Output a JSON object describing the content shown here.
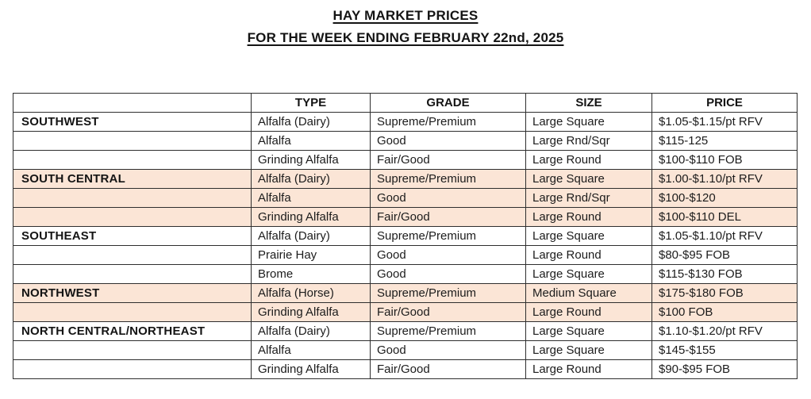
{
  "title": {
    "line1": "HAY MARKET PRICES",
    "line2": "FOR THE WEEK ENDING FEBRUARY 22nd, 2025"
  },
  "table": {
    "headers": [
      "",
      "TYPE",
      "GRADE",
      "SIZE",
      "PRICE"
    ],
    "shaded_row_color": "#fbe5d6",
    "rows": [
      {
        "region": "SOUTHWEST",
        "type": "Alfalfa (Dairy)",
        "grade": "Supreme/Premium",
        "size": "Large Square",
        "price": "$1.05-$1.15/pt RFV",
        "shaded": false
      },
      {
        "region": "",
        "type": "Alfalfa",
        "grade": "Good",
        "size": "Large Rnd/Sqr",
        "price": "$115-125",
        "shaded": false
      },
      {
        "region": "",
        "type": "Grinding Alfalfa",
        "grade": "Fair/Good",
        "size": "Large Round",
        "price": "$100-$110 FOB",
        "shaded": false
      },
      {
        "region": "SOUTH CENTRAL",
        "type": "Alfalfa (Dairy)",
        "grade": "Supreme/Premium",
        "size": "Large Square",
        "price": "$1.00-$1.10/pt RFV",
        "shaded": true
      },
      {
        "region": "",
        "type": "Alfalfa",
        "grade": "Good",
        "size": "Large Rnd/Sqr",
        "price": "$100-$120",
        "shaded": true
      },
      {
        "region": "",
        "type": "Grinding Alfalfa",
        "grade": "Fair/Good",
        "size": "Large Round",
        "price": "$100-$110 DEL",
        "shaded": true
      },
      {
        "region": "SOUTHEAST",
        "type": "Alfalfa (Dairy)",
        "grade": "Supreme/Premium",
        "size": "Large Square",
        "price": "$1.05-$1.10/pt RFV",
        "shaded": false
      },
      {
        "region": "",
        "type": "Prairie Hay",
        "grade": "Good",
        "size": "Large Round",
        "price": "$80-$95 FOB",
        "shaded": false
      },
      {
        "region": "",
        "type": "Brome",
        "grade": "Good",
        "size": "Large Square",
        "price": "$115-$130 FOB",
        "shaded": false
      },
      {
        "region": "NORTHWEST",
        "type": "Alfalfa (Horse)",
        "grade": "Supreme/Premium",
        "size": "Medium Square",
        "price": "$175-$180 FOB",
        "shaded": true
      },
      {
        "region": "",
        "type": "Grinding Alfalfa",
        "grade": "Fair/Good",
        "size": "Large Round",
        "price": "$100 FOB",
        "shaded": true
      },
      {
        "region": "NORTH CENTRAL/NORTHEAST",
        "type": "Alfalfa (Dairy)",
        "grade": "Supreme/Premium",
        "size": "Large Square",
        "price": "$1.10-$1.20/pt RFV",
        "shaded": false
      },
      {
        "region": "",
        "type": "Alfalfa",
        "grade": "Good",
        "size": "Large Square",
        "price": "$145-$155",
        "shaded": false
      },
      {
        "region": "",
        "type": "Grinding Alfalfa",
        "grade": "Fair/Good",
        "size": "Large Round",
        "price": "$90-$95 FOB",
        "shaded": false
      }
    ]
  }
}
